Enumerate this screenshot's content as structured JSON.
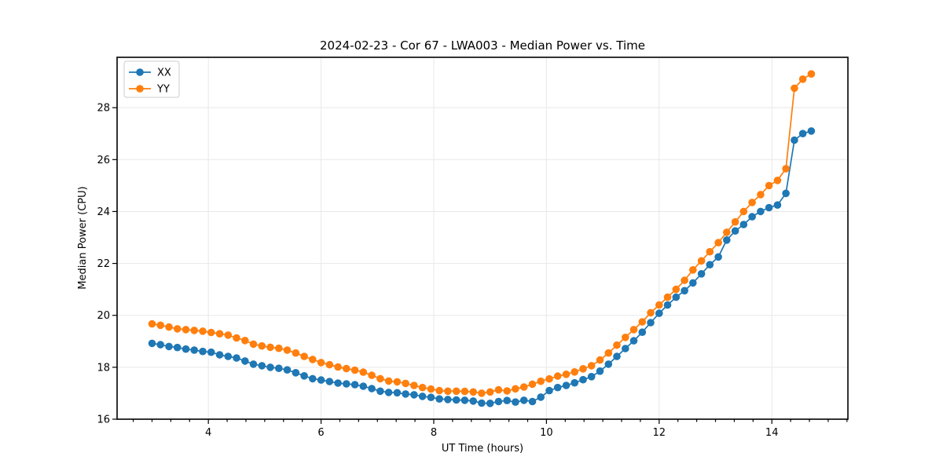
{
  "chart_data": {
    "type": "line",
    "title": "2024-02-23 - Cor 67 - LWA003 - Median Power vs. Time",
    "xlabel": "UT Time (hours)",
    "ylabel": "Median Power (CPU)",
    "xlim": [
      2.38,
      15.35
    ],
    "ylim": [
      16,
      29.94
    ],
    "xticks": [
      4,
      6,
      8,
      10,
      12,
      14
    ],
    "yticks": [
      16,
      18,
      20,
      22,
      24,
      26,
      28
    ],
    "minor_xtick_step": 0.3333,
    "grid": true,
    "legend_position": "upper-left",
    "x": [
      3.0,
      3.15,
      3.3,
      3.45,
      3.6,
      3.75,
      3.9,
      4.05,
      4.2,
      4.35,
      4.5,
      4.65,
      4.8,
      4.95,
      5.1,
      5.25,
      5.4,
      5.55,
      5.7,
      5.85,
      6.0,
      6.15,
      6.3,
      6.45,
      6.6,
      6.75,
      6.9,
      7.05,
      7.2,
      7.35,
      7.5,
      7.65,
      7.8,
      7.95,
      8.1,
      8.25,
      8.4,
      8.55,
      8.7,
      8.85,
      9.0,
      9.15,
      9.3,
      9.45,
      9.6,
      9.75,
      9.9,
      10.05,
      10.2,
      10.35,
      10.5,
      10.65,
      10.8,
      10.95,
      11.1,
      11.25,
      11.4,
      11.55,
      11.7,
      11.85,
      12.0,
      12.15,
      12.3,
      12.45,
      12.6,
      12.75,
      12.9,
      13.05,
      13.2,
      13.35,
      13.5,
      13.65,
      13.8,
      13.95,
      14.1,
      14.25,
      14.4,
      14.55,
      14.7
    ],
    "series": [
      {
        "name": "XX",
        "color": "#1f77b4",
        "values": [
          18.92,
          18.87,
          18.8,
          18.76,
          18.7,
          18.66,
          18.61,
          18.58,
          18.48,
          18.42,
          18.36,
          18.24,
          18.12,
          18.06,
          18.0,
          17.96,
          17.9,
          17.79,
          17.67,
          17.56,
          17.51,
          17.45,
          17.39,
          17.36,
          17.33,
          17.27,
          17.18,
          17.08,
          17.03,
          17.02,
          16.97,
          16.94,
          16.88,
          16.84,
          16.78,
          16.76,
          16.74,
          16.73,
          16.7,
          16.62,
          16.61,
          16.68,
          16.72,
          16.66,
          16.73,
          16.68,
          16.85,
          17.1,
          17.22,
          17.3,
          17.4,
          17.52,
          17.64,
          17.85,
          18.12,
          18.42,
          18.72,
          19.02,
          19.35,
          19.72,
          20.08,
          20.4,
          20.7,
          20.95,
          21.25,
          21.6,
          21.95,
          22.25,
          22.9,
          23.25,
          23.5,
          23.8,
          24.0,
          24.15,
          24.25,
          24.7,
          26.75,
          27.0,
          27.1
        ]
      },
      {
        "name": "YY",
        "color": "#ff7f0e",
        "values": [
          19.67,
          19.62,
          19.55,
          19.48,
          19.45,
          19.42,
          19.39,
          19.34,
          19.29,
          19.24,
          19.13,
          19.03,
          18.89,
          18.82,
          18.77,
          18.73,
          18.66,
          18.55,
          18.42,
          18.3,
          18.18,
          18.1,
          18.01,
          17.95,
          17.89,
          17.81,
          17.69,
          17.56,
          17.47,
          17.44,
          17.38,
          17.3,
          17.22,
          17.16,
          17.1,
          17.08,
          17.08,
          17.07,
          17.05,
          17.0,
          17.05,
          17.13,
          17.09,
          17.17,
          17.24,
          17.35,
          17.46,
          17.55,
          17.66,
          17.73,
          17.82,
          17.94,
          18.06,
          18.28,
          18.55,
          18.85,
          19.15,
          19.45,
          19.75,
          20.1,
          20.4,
          20.7,
          21.0,
          21.35,
          21.75,
          22.1,
          22.45,
          22.8,
          23.2,
          23.6,
          24.0,
          24.35,
          24.65,
          25.0,
          25.2,
          25.65,
          28.75,
          29.1,
          29.3
        ]
      }
    ]
  }
}
